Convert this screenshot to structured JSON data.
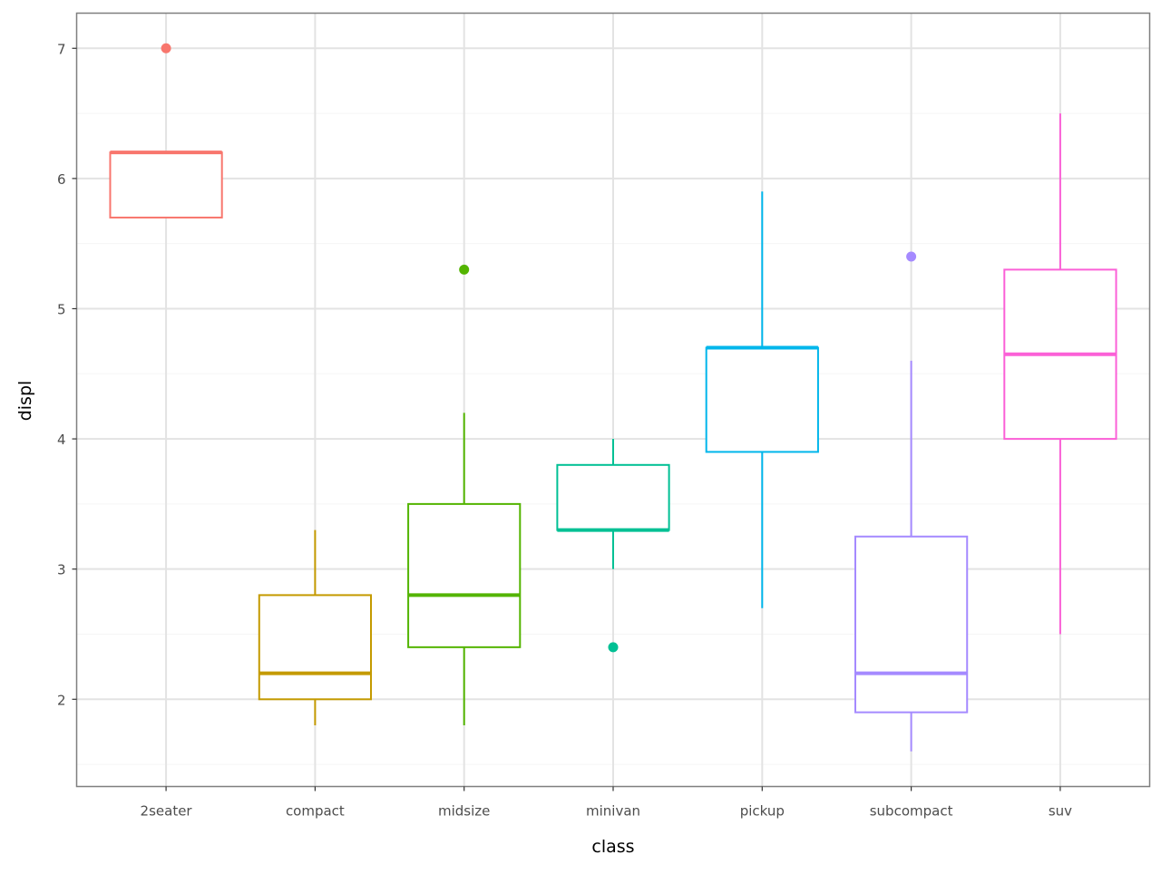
{
  "chart_data": {
    "type": "boxplot",
    "xlabel": "class",
    "ylabel": "displ",
    "ylim": [
      1.33,
      7.27
    ],
    "yticks": [
      2,
      3,
      4,
      5,
      6,
      7
    ],
    "grid": true,
    "legend": "none",
    "categories": [
      "2seater",
      "compact",
      "midsize",
      "minivan",
      "pickup",
      "subcompact",
      "suv"
    ],
    "colors": [
      "#F8766D",
      "#C49A00",
      "#53B400",
      "#00C094",
      "#00B6EB",
      "#A58AFF",
      "#FB61D7"
    ],
    "boxes": [
      {
        "category": "2seater",
        "min": 5.7,
        "q1": 5.7,
        "median": 6.2,
        "q3": 6.2,
        "max": 6.2,
        "outliers": [
          7.0
        ]
      },
      {
        "category": "compact",
        "min": 1.8,
        "q1": 2.0,
        "median": 2.2,
        "q3": 2.8,
        "max": 3.3,
        "outliers": []
      },
      {
        "category": "midsize",
        "min": 1.8,
        "q1": 2.4,
        "median": 2.8,
        "q3": 3.5,
        "max": 4.2,
        "outliers": [
          5.3
        ]
      },
      {
        "category": "minivan",
        "min": 3.0,
        "q1": 3.3,
        "median": 3.3,
        "q3": 3.8,
        "max": 4.0,
        "outliers": [
          2.4
        ]
      },
      {
        "category": "pickup",
        "min": 2.7,
        "q1": 3.9,
        "median": 4.7,
        "q3": 4.7,
        "max": 5.9,
        "outliers": []
      },
      {
        "category": "subcompact",
        "min": 1.6,
        "q1": 1.9,
        "median": 2.2,
        "q3": 3.25,
        "max": 4.6,
        "outliers": [
          5.4
        ]
      },
      {
        "category": "suv",
        "min": 2.5,
        "q1": 4.0,
        "median": 4.65,
        "q3": 5.3,
        "max": 6.5,
        "outliers": []
      }
    ]
  }
}
